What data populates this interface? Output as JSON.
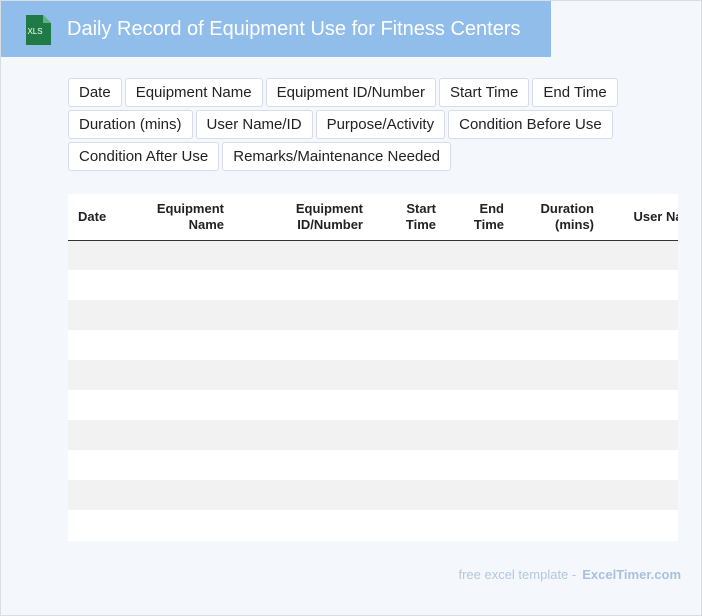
{
  "header": {
    "title": "Daily Record of Equipment Use for Fitness Centers",
    "icon_label": "XLS"
  },
  "fields": [
    "Date",
    "Equipment Name",
    "Equipment ID/Number",
    "Start Time",
    "End Time",
    "Duration (mins)",
    "User Name/ID",
    "Purpose/Activity",
    "Condition Before Use",
    "Condition After Use",
    "Remarks/Maintenance Needed"
  ],
  "table": {
    "columns": [
      "Date",
      "Equipment Name",
      "Equipment ID/Number",
      "Start Time",
      "End Time",
      "Duration (mins)",
      "User Name/ID"
    ],
    "row_count": 10
  },
  "footer": {
    "prefix": "free excel template -",
    "brand": "ExcelTimer.com"
  },
  "colors": {
    "title_bar": "#91bdea",
    "page_bg": "#f4f8fd",
    "icon_green": "#1f7a45"
  }
}
